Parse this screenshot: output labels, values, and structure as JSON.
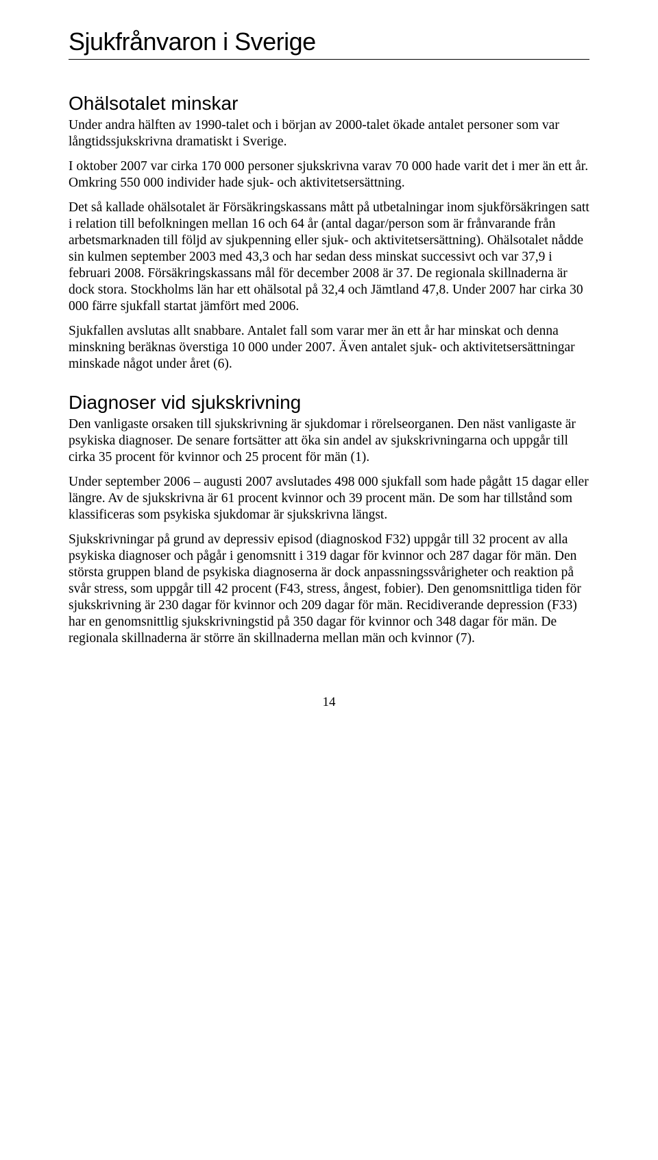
{
  "title": "Sjukfrånvaron i Sverige",
  "section1": {
    "heading": "Ohälsotalet minskar",
    "p1": "Under andra hälften av 1990-talet och i början av 2000-talet ökade antalet personer som var långtidssjukskrivna dramatiskt i Sverige.",
    "p2": "I oktober 2007 var cirka 170 000 personer sjukskrivna varav 70 000 hade varit det i mer än ett år. Omkring 550 000 individer hade sjuk- och aktivitetsersättning.",
    "p3": "Det så kallade ohälsotalet är Försäkringskassans mått på utbetalningar inom sjukförsäkringen satt i relation till befolkningen mellan 16 och 64 år (antal dagar/person som är frånvarande från arbetsmarknaden till följd av sjukpenning eller sjuk- och aktivitetsersättning). Ohälsotalet nådde sin kulmen september 2003 med 43,3 och har sedan dess minskat successivt och var 37,9 i februari 2008. Försäkringskassans mål för december 2008 är 37. De regionala skillnaderna är dock stora. Stockholms län har ett ohälsotal på 32,4 och Jämtland 47,8. Under 2007 har cirka 30 000 färre sjukfall startat jämfört med 2006.",
    "p4": "Sjukfallen avslutas allt snabbare. Antalet fall som varar mer än ett år har minskat och denna minskning beräknas överstiga 10 000 under 2007. Även antalet sjuk- och aktivitetsersättningar minskade något under året (6)."
  },
  "section2": {
    "heading": "Diagnoser vid sjukskrivning",
    "p1": "Den vanligaste orsaken till sjukskrivning är sjukdomar i rörelseorganen. Den näst vanligaste är psykiska diagnoser. De senare fortsätter att öka sin andel av sjukskrivningarna och uppgår till cirka 35 procent för kvinnor och 25 procent för män (1).",
    "p2": "Under september 2006 – augusti 2007 avslutades 498 000 sjukfall som hade pågått 15 dagar eller längre. Av de sjukskrivna är 61 procent kvinnor och 39 procent män. De som har tillstånd som klassificeras som psykiska sjukdomar är sjukskrivna längst.",
    "p3": "Sjukskrivningar på grund av depressiv episod (diagnoskod F32) uppgår till 32 procent av alla psykiska diagnoser och pågår i genomsnitt i 319 dagar för kvinnor och 287 dagar för män. Den största gruppen bland de psykiska diagnoserna är dock anpassningssvårigheter och reaktion på svår stress, som uppgår till 42 procent (F43, stress, ångest, fobier). Den genomsnittliga tiden för sjukskrivning är 230 dagar för kvinnor och 209 dagar för män. Recidiverande depression (F33) har en genomsnittlig sjukskrivningstid på 350 dagar för kvinnor och 348 dagar för män. De regionala skillnaderna är större än skillnaderna mellan män och kvinnor (7)."
  },
  "pageNumber": "14"
}
